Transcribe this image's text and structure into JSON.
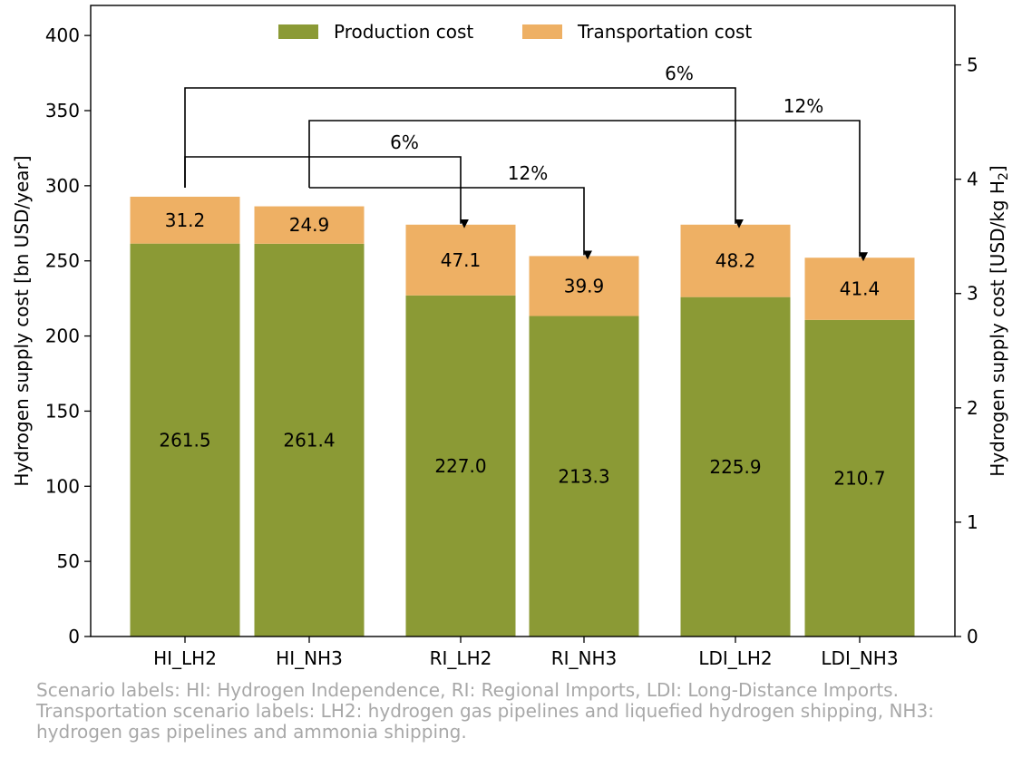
{
  "chart_data": {
    "type": "bar",
    "stacked": true,
    "categories": [
      "HI_LH2",
      "HI_NH3",
      "RI_LH2",
      "RI_NH3",
      "LDI_LH2",
      "LDI_NH3"
    ],
    "series": [
      {
        "name": "Production cost",
        "color": "#8b9a35",
        "values": [
          261.5,
          261.4,
          227.0,
          213.3,
          225.9,
          210.7
        ]
      },
      {
        "name": "Transportation cost",
        "color": "#eeb064",
        "values": [
          31.2,
          24.9,
          47.1,
          39.9,
          48.2,
          41.4
        ]
      }
    ],
    "ylabel": "Hydrogen supply cost [bn USD/year]",
    "ylabel_right": "Hydrogen supply cost [USD/kg H",
    "ylabel_right_sub": "2",
    "ylabel_right_end": "]",
    "ylim": [
      0,
      420
    ],
    "yticks": [
      0,
      50,
      100,
      150,
      200,
      250,
      300,
      350,
      400
    ],
    "ylim_right": [
      0,
      5.52
    ],
    "yticks_right": [
      0,
      1,
      2,
      3,
      4,
      5
    ],
    "legend_position": "top-center",
    "annotations": [
      {
        "from": "HI_LH2",
        "to": "LDI_LH2",
        "label": "6%"
      },
      {
        "from": "HI_NH3",
        "to": "LDI_NH3",
        "label": "12%"
      },
      {
        "from": "HI_LH2",
        "to": "RI_LH2",
        "label": "6%"
      },
      {
        "from": "HI_NH3",
        "to": "RI_NH3",
        "label": "12%"
      }
    ]
  },
  "caption": {
    "line1": "Scenario labels: HI: Hydrogen Independence, RI: Regional Imports, LDI: Long-Distance Imports.",
    "line2": "Transportation scenario labels: LH2: hydrogen gas pipelines and liquefied hydrogen shipping, NH3:",
    "line3": "hydrogen gas pipelines and ammonia shipping."
  }
}
